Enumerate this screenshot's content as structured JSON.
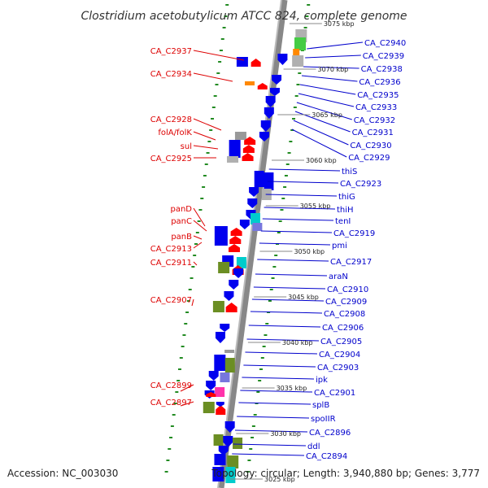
{
  "title": "Clostridium acetobutylicum ATCC 824, complete genome",
  "accession": "Accession: NC_003030",
  "summary": "Topology: circular; Length: 3,940,880 bp; Genes: 3,777",
  "colors": {
    "left_label": "#dd0000",
    "right_label": "#0000cc",
    "strand_plus": "#ff0000",
    "strand_minus": "#0000ee",
    "backbone": "#888888",
    "dots": "#228b22"
  },
  "ruler_labels": [
    {
      "text": "3075 kbp",
      "pos": 0.0
    },
    {
      "text": "3070 kbp",
      "pos": 1.0
    },
    {
      "text": "3065 kbp",
      "pos": 2.0
    },
    {
      "text": "3060 kbp",
      "pos": 3.0
    },
    {
      "text": "3055 kbp",
      "pos": 4.0
    },
    {
      "text": "3050 kbp",
      "pos": 5.0
    },
    {
      "text": "3045 kbp",
      "pos": 6.0
    },
    {
      "text": "3040 kbp",
      "pos": 7.0
    },
    {
      "text": "3035 kbp",
      "pos": 8.0
    },
    {
      "text": "3030 kbp",
      "pos": 9.0
    },
    {
      "text": "3025 kbp",
      "pos": 10.0
    }
  ],
  "left_labels": [
    "CA_C2937",
    "CA_C2934",
    "CA_C2928",
    "folA/folK",
    "sul",
    "CA_C2925",
    "panD",
    "panC",
    "panB",
    "CA_C2913",
    "CA_C2911",
    "CA_C2907",
    "CA_C2899",
    "CA_C2897"
  ],
  "right_labels": [
    "CA_C2940",
    "CA_C2939",
    "CA_C2938",
    "CA_C2936",
    "CA_C2935",
    "CA_C2933",
    "CA_C2932",
    "CA_C2931",
    "CA_C2930",
    "CA_C2929",
    "thiS",
    "CA_C2923",
    "thiG",
    "thiH",
    "tenI",
    "CA_C2919",
    "pmi",
    "CA_C2917",
    "araN",
    "CA_C2910",
    "CA_C2909",
    "CA_C2908",
    "CA_C2906",
    "CA_C2905",
    "CA_C2904",
    "CA_C2903",
    "ipk",
    "CA_C2901",
    "splB",
    "spoIIR",
    "CA_C2896",
    "ddl",
    "CA_C2894"
  ]
}
